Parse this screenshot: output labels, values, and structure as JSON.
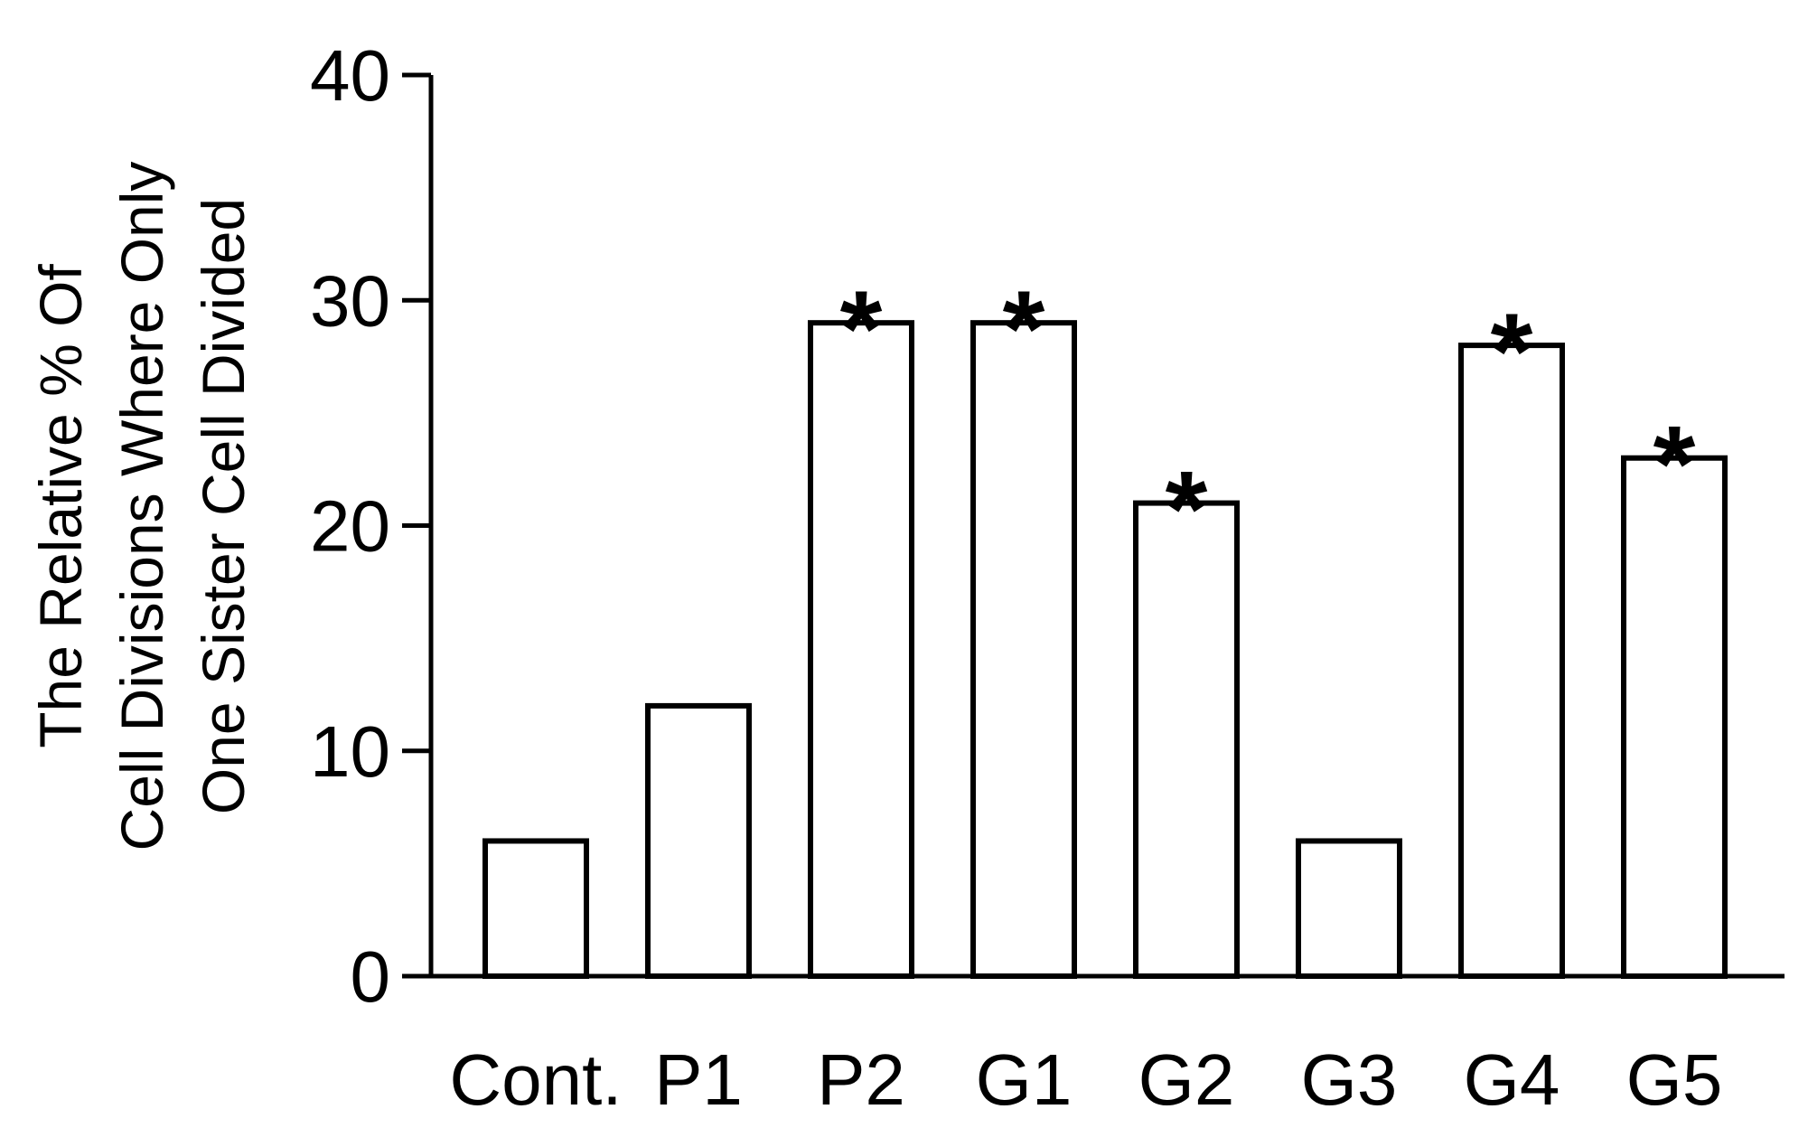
{
  "chart_data": {
    "type": "bar",
    "categories": [
      "Cont.",
      "P1",
      "P2",
      "G1",
      "G2",
      "G3",
      "G4",
      "G5"
    ],
    "values": [
      6,
      12,
      29,
      29,
      21,
      6,
      28,
      23
    ],
    "significance": [
      "",
      "",
      "*",
      "*",
      "*",
      "",
      "*",
      "*"
    ],
    "ylabel_lines": [
      "The Relative % Of",
      "Cell Divisions Where Only",
      "One Sister Cell Divided"
    ],
    "ylim": [
      0,
      40
    ],
    "yticks": [
      0,
      10,
      20,
      30,
      40
    ],
    "xlabel": "",
    "title": "",
    "grid": false,
    "legend": "none",
    "bar_fill": "#ffffff",
    "bar_stroke": "#000000"
  }
}
